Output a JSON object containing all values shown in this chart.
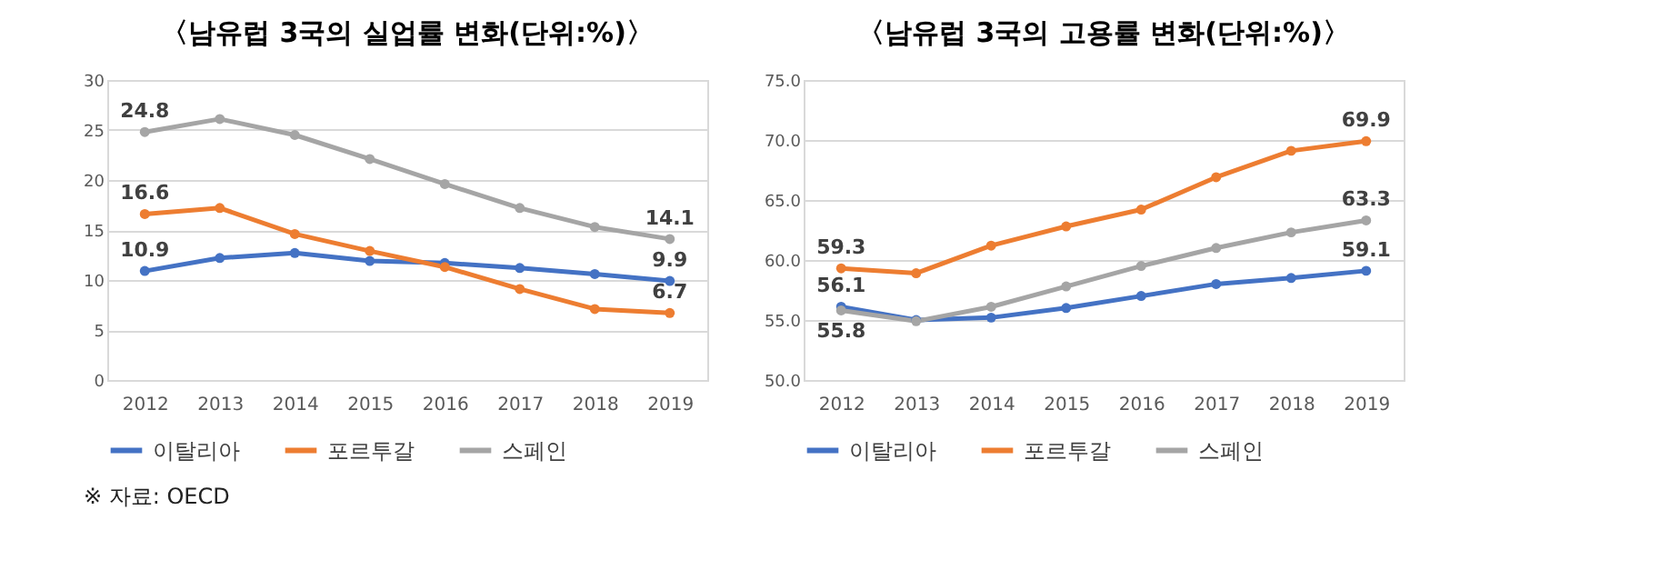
{
  "chart_data": [
    {
      "type": "line",
      "title": "〈남유럽 3국의 실업률 변화(단위:%)〉",
      "categories": [
        "2012",
        "2013",
        "2014",
        "2015",
        "2016",
        "2017",
        "2018",
        "2019"
      ],
      "series": [
        {
          "name": "이탈리아",
          "color": "#4472c4",
          "values": [
            10.9,
            12.2,
            12.7,
            11.9,
            11.7,
            11.2,
            10.6,
            9.9
          ],
          "value_labels": [
            "10.9",
            null,
            null,
            null,
            null,
            null,
            null,
            "9.9"
          ]
        },
        {
          "name": "포르투갈",
          "color": "#ed7d31",
          "values": [
            16.6,
            17.2,
            14.6,
            12.9,
            11.3,
            9.1,
            7.1,
            6.7
          ],
          "value_labels": [
            "16.6",
            null,
            null,
            null,
            null,
            null,
            null,
            "6.7"
          ]
        },
        {
          "name": "스페인",
          "color": "#a5a5a5",
          "values": [
            24.8,
            26.1,
            24.5,
            22.1,
            19.6,
            17.2,
            15.3,
            14.1
          ],
          "value_labels": [
            "24.8",
            null,
            null,
            null,
            null,
            null,
            null,
            "14.1"
          ]
        }
      ],
      "ylim": [
        0,
        30
      ],
      "yticks": [
        0,
        5,
        10,
        15,
        20,
        25,
        30
      ],
      "grid": "y",
      "legend": "bottom",
      "marker": "circle",
      "annotations": [
        "※ 자료: OECD"
      ]
    },
    {
      "type": "line",
      "title": "〈남유럽 3국의 고용률 변화(단위:%)〉",
      "categories": [
        "2012",
        "2013",
        "2014",
        "2015",
        "2016",
        "2017",
        "2018",
        "2019"
      ],
      "series": [
        {
          "name": "이탈리아",
          "color": "#4472c4",
          "values": [
            56.1,
            55.0,
            55.2,
            56.0,
            57.0,
            58.0,
            58.5,
            59.1
          ],
          "value_labels": [
            "56.1",
            null,
            null,
            null,
            null,
            null,
            null,
            "59.1"
          ]
        },
        {
          "name": "포르투갈",
          "color": "#ed7d31",
          "values": [
            59.3,
            58.9,
            61.2,
            62.8,
            64.2,
            66.9,
            69.1,
            69.9
          ],
          "value_labels": [
            "59.3",
            null,
            null,
            null,
            null,
            null,
            null,
            "69.9"
          ]
        },
        {
          "name": "스페인",
          "color": "#a5a5a5",
          "values": [
            55.8,
            54.9,
            56.1,
            57.8,
            59.5,
            61.0,
            62.3,
            63.3
          ],
          "value_labels": [
            "55.8",
            null,
            null,
            null,
            null,
            null,
            null,
            "63.3"
          ]
        }
      ],
      "ylim": [
        50,
        75
      ],
      "yticks": [
        {
          "value": 50,
          "label": "50.0"
        },
        {
          "value": 55,
          "label": "55.0"
        },
        {
          "value": 60,
          "label": "60.0"
        },
        {
          "value": 65,
          "label": "65.0"
        },
        {
          "value": 70,
          "label": "70.0"
        },
        {
          "value": 75,
          "label": "75.0"
        }
      ],
      "grid": "y",
      "legend": "bottom",
      "marker": "circle"
    }
  ]
}
